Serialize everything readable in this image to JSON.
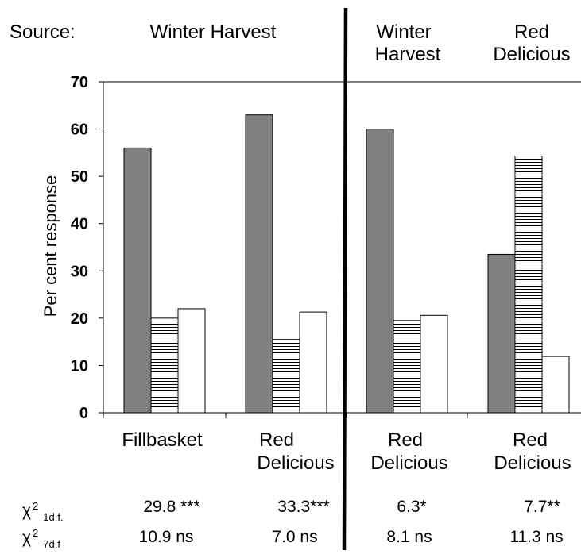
{
  "source_label": "Source:",
  "sources": [
    {
      "name": "Winter Harvest",
      "lines": [
        "Winter Harvest"
      ]
    },
    {
      "name": "Winter Harvest",
      "lines": [
        "Winter",
        "Harvest"
      ]
    },
    {
      "name": "Red Delicious",
      "lines": [
        "Red",
        "Delicious"
      ]
    }
  ],
  "chi_rows": [
    {
      "symbol": "χ",
      "sup": "2",
      "sub": "1d.f."
    },
    {
      "symbol": "χ",
      "sup": "2",
      "sub": "7d.f"
    }
  ],
  "colors": {
    "gray": "#808080",
    "hatch": "#000000",
    "white": "#ffffff"
  },
  "chart_data": {
    "type": "bar",
    "ylabel": "Per cent response",
    "ylim": [
      0,
      70
    ],
    "yticks": [
      0,
      10,
      20,
      30,
      40,
      50,
      60,
      70
    ],
    "categories": [
      {
        "lines": [
          "Fillbasket"
        ]
      },
      {
        "lines": [
          "Red",
          "Delicious"
        ]
      },
      {
        "lines": [
          "Red",
          "Delicious"
        ]
      },
      {
        "lines": [
          "Red",
          "Delicious"
        ]
      }
    ],
    "series": [
      {
        "style": "gray-fill",
        "values": [
          56,
          63,
          60,
          33.5
        ]
      },
      {
        "style": "horizontal-hatch",
        "values": [
          20,
          15.5,
          19.5,
          54.3
        ]
      },
      {
        "style": "white-fill",
        "values": [
          22,
          21.3,
          20.6,
          11.9
        ]
      }
    ],
    "chi_1df": [
      "29.8 ***",
      "33.3***",
      "6.3*",
      "7.7**"
    ],
    "chi_7df": [
      "10.9 ns",
      "7.0 ns",
      "8.1 ns",
      "11.3 ns"
    ]
  }
}
